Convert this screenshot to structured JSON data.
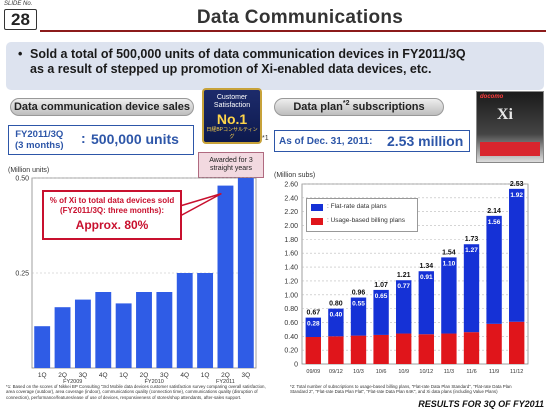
{
  "slide": {
    "label": "SLIDE No.",
    "number": "28"
  },
  "title": "Data Communications",
  "headline": {
    "bullet": "•",
    "line1": "Sold a total of 500,000 units of data communication devices in FY2011/3Q",
    "line2": "as a result of stepped up promotion of Xi-enabled data devices, etc."
  },
  "left_panel": {
    "pill": "Data communication device sales",
    "period_line1": "FY2011/3Q",
    "period_line2": "(3 months)",
    "colon": ":",
    "value": "500,000 units",
    "units": "(Million units)",
    "callout_line1": "% of Xi to total data devices sold",
    "callout_line2": "(FY2011/3Q: three months):",
    "callout_value": "Approx. 80%",
    "footnote": "*1: Based on the scores of Nikkei BP Consulting \"3rd Mobile data devices customer satisfaction survey comparing overall satisfaction, area coverage (outdoor), area coverage (indoor), communications quality (connection time), communications quality (disruption of connection), performance/features/ease of use of devices, responsiveness of stores/shop attendants, after-sales support."
  },
  "badge": {
    "line1": "Customer Satisfaction",
    "line2": "No.1",
    "line3": "日経BPコンサルティング",
    "ribbon": "Awarded for 3 straight years",
    "marker": "*1"
  },
  "right_panel": {
    "pill_text": "Data plan",
    "pill_sup": "*2",
    "pill_rest": " subscriptions",
    "asof": "As of Dec. 31, 2011",
    "colon": ":",
    "value": "2.53 million",
    "units": "(Million subs)",
    "legend_flat": ": Flat-rate data  plans",
    "legend_usage": ": Usage-based billing plans",
    "footnote": "*2: Total number of subscriptions to usage-based billing plans, \"Flat-rate Data Plan Standard\", \"Flat-rate Data Plan Standard 2\", \"Flat-rate Data Plan Flat\", \"Flat-rate Data Plan 64K\", and Xi data plans (including Value Plans)"
  },
  "ad": {
    "logo": "docomo",
    "brand": "Xi"
  },
  "footer": "RESULTS FOR 3Q OF FY2011",
  "colors": {
    "bar_blue": "#2f5ce6",
    "flat_blue": "#1531d6",
    "usage_red": "#e0151b",
    "accent": "#2d56a8",
    "title_rule": "#8c1b1b"
  },
  "chart_data": [
    {
      "type": "bar",
      "title": "Data communication device sales",
      "ylabel": "(Million units)",
      "categories": [
        "1Q",
        "2Q",
        "3Q",
        "4Q",
        "1Q",
        "2Q",
        "3Q",
        "4Q",
        "1Q",
        "2Q",
        "3Q"
      ],
      "year_groups": [
        {
          "label": "FY2009",
          "start": 0,
          "end": 3
        },
        {
          "label": "FY2010",
          "start": 4,
          "end": 7
        },
        {
          "label": "FY2011",
          "start": 8,
          "end": 10
        }
      ],
      "values": [
        0.11,
        0.16,
        0.18,
        0.2,
        0.17,
        0.2,
        0.2,
        0.25,
        0.25,
        0.48,
        0.5
      ],
      "ylim": [
        0,
        0.5
      ],
      "yticks": [
        {
          "v": 0.25,
          "label": "0.25"
        },
        {
          "v": 0.5,
          "label": "0.50"
        }
      ],
      "grid": true
    },
    {
      "type": "bar",
      "title": "Data plan subscriptions",
      "ylabel": "(Million subs)",
      "stacked": true,
      "categories": [
        "09/09",
        "09/12",
        "10/3",
        "10/6",
        "10/9",
        "10/12",
        "11/3",
        "11/6",
        "11/9",
        "11/12"
      ],
      "series": [
        {
          "name": "Usage-based billing plans",
          "values": [
            0.39,
            0.4,
            0.41,
            0.42,
            0.44,
            0.43,
            0.44,
            0.46,
            0.58,
            0.61
          ]
        },
        {
          "name": "Flat-rate data  plans",
          "values": [
            0.28,
            0.4,
            0.55,
            0.65,
            0.77,
            0.91,
            1.1,
            1.27,
            1.56,
            1.92
          ]
        }
      ],
      "totals": [
        0.67,
        0.8,
        0.96,
        1.07,
        1.21,
        1.34,
        1.54,
        1.73,
        2.14,
        2.53
      ],
      "total_labels": [
        "0.67",
        "0.80",
        "0.96",
        "1.07",
        "1.21",
        "1.34",
        "1.54",
        "1.73",
        "2.14",
        "2.53"
      ],
      "flat_labels": [
        "0.28",
        "0.40",
        "0.55",
        "0.65",
        "0.77",
        "0.91",
        "1.10",
        "1.27",
        "1.56",
        "1.92"
      ],
      "ylim": [
        0,
        2.6
      ],
      "yticks": [
        "0",
        "0.20",
        "0.40",
        "0.60",
        "0.80",
        "1.00",
        "1.20",
        "1.40",
        "1.60",
        "1.80",
        "2.00",
        "2.20",
        "2.40",
        "2.60"
      ],
      "grid": true
    }
  ]
}
